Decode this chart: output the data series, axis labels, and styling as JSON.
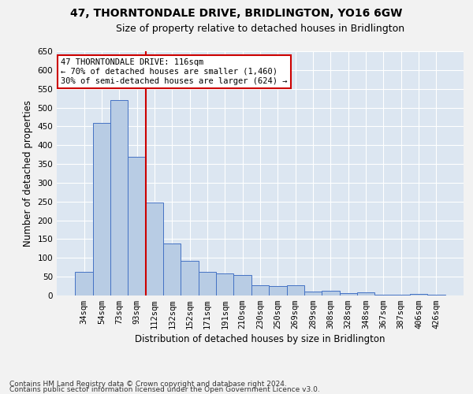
{
  "title": "47, THORNTONDALE DRIVE, BRIDLINGTON, YO16 6GW",
  "subtitle": "Size of property relative to detached houses in Bridlington",
  "xlabel": "Distribution of detached houses by size in Bridlington",
  "ylabel": "Number of detached properties",
  "categories": [
    "34sqm",
    "54sqm",
    "73sqm",
    "93sqm",
    "112sqm",
    "132sqm",
    "152sqm",
    "171sqm",
    "191sqm",
    "210sqm",
    "230sqm",
    "250sqm",
    "269sqm",
    "289sqm",
    "308sqm",
    "328sqm",
    "348sqm",
    "367sqm",
    "387sqm",
    "406sqm",
    "426sqm"
  ],
  "values": [
    62,
    460,
    520,
    370,
    248,
    138,
    93,
    62,
    58,
    55,
    27,
    25,
    27,
    10,
    12,
    6,
    8,
    3,
    3,
    5,
    3
  ],
  "bar_color": "#b8cce4",
  "bar_edge_color": "#4472c4",
  "background_color": "#dce6f1",
  "grid_color": "#ffffff",
  "red_line_x": 4,
  "annotation_text": "47 THORNTONDALE DRIVE: 116sqm\n← 70% of detached houses are smaller (1,460)\n30% of semi-detached houses are larger (624) →",
  "annotation_box_color": "#ffffff",
  "annotation_box_edge": "#cc0000",
  "ylim": [
    0,
    650
  ],
  "yticks": [
    0,
    50,
    100,
    150,
    200,
    250,
    300,
    350,
    400,
    450,
    500,
    550,
    600,
    650
  ],
  "footer_line1": "Contains HM Land Registry data © Crown copyright and database right 2024.",
  "footer_line2": "Contains public sector information licensed under the Open Government Licence v3.0.",
  "title_fontsize": 10,
  "subtitle_fontsize": 9,
  "xlabel_fontsize": 8.5,
  "ylabel_fontsize": 8.5,
  "tick_fontsize": 7.5,
  "footer_fontsize": 6.5,
  "fig_facecolor": "#f2f2f2"
}
